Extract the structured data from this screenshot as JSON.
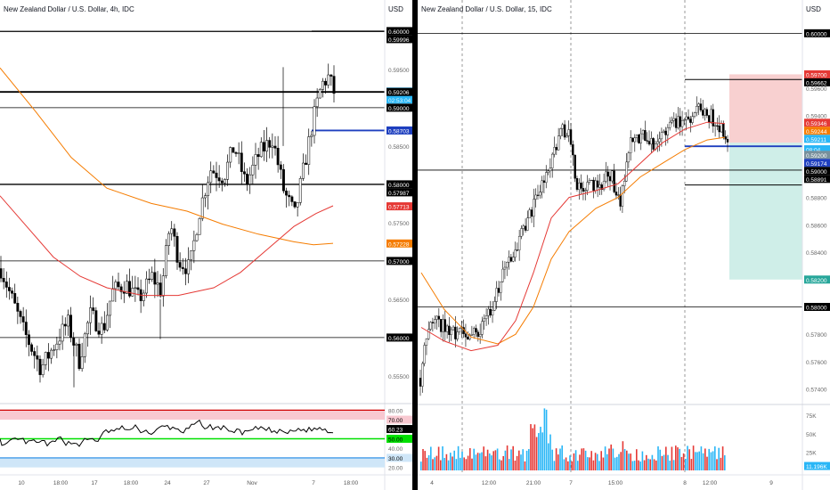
{
  "left_chart": {
    "title": "New Zealand Dollar / U.S. Dollar, 4h, IDC",
    "currency": "USD",
    "price_labels": [
      {
        "text": "0.60000",
        "kind": "line",
        "y": 0.6
      },
      {
        "text": "0.59996",
        "kind": "line",
        "y": 0.59996
      },
      {
        "text": "0.59500",
        "kind": "axis",
        "y": 0.595
      },
      {
        "text": "0.59211",
        "kind": "last",
        "y": 0.59211
      },
      {
        "text": "02:53:04",
        "kind": "countdown",
        "y": 0.5915
      },
      {
        "text": "0.59206",
        "kind": "line",
        "y": 0.59206
      },
      {
        "text": "0.59000",
        "kind": "line",
        "y": 0.59
      },
      {
        "text": "0.58703",
        "kind": "blueline",
        "y": 0.58703
      },
      {
        "text": "0.58500",
        "kind": "axis",
        "y": 0.585
      },
      {
        "text": "0.58000",
        "kind": "line",
        "y": 0.58
      },
      {
        "text": "0.57987",
        "kind": "line",
        "y": 0.57987
      },
      {
        "text": "0.57713",
        "kind": "ma_red",
        "y": 0.57713
      },
      {
        "text": "0.57500",
        "kind": "axis",
        "y": 0.575
      },
      {
        "text": "0.57228",
        "kind": "ma_orange",
        "y": 0.57228
      },
      {
        "text": "0.57000",
        "kind": "line",
        "y": 0.57
      },
      {
        "text": "0.56500",
        "kind": "axis",
        "y": 0.565
      },
      {
        "text": "0.56000",
        "kind": "line",
        "y": 0.56
      },
      {
        "text": "0.55500",
        "kind": "axis",
        "y": 0.555
      }
    ],
    "rsi_labels": [
      {
        "text": "80.00",
        "kind": "axis",
        "v": 80
      },
      {
        "text": "70.00",
        "kind": "ob",
        "v": 70
      },
      {
        "text": "60.23",
        "kind": "current",
        "v": 60.23
      },
      {
        "text": "50.00",
        "kind": "mid",
        "v": 50
      },
      {
        "text": "40.00",
        "kind": "axis",
        "v": 40
      },
      {
        "text": "30.00",
        "kind": "os",
        "v": 30
      },
      {
        "text": "20.00",
        "kind": "axis",
        "v": 20
      }
    ],
    "x_labels": [
      "10",
      "18:00",
      "17",
      "18:00",
      "24",
      "27",
      "Nov",
      "7",
      "18:00"
    ]
  },
  "right_chart": {
    "title": "New Zealand Dollar / U.S. Dollar, 15, IDC",
    "currency": "USD",
    "price_labels": [
      {
        "text": "0.60000",
        "kind": "line",
        "y": 0.6
      },
      {
        "text": "0.59700",
        "kind": "stop",
        "y": 0.597
      },
      {
        "text": "0.59662",
        "kind": "line",
        "y": 0.59662
      },
      {
        "text": "0.59600",
        "kind": "axis",
        "y": 0.596
      },
      {
        "text": "0.59400",
        "kind": "axis",
        "y": 0.594
      },
      {
        "text": "0.59346",
        "kind": "ma_red",
        "y": 0.59346
      },
      {
        "text": "0.59244",
        "kind": "ma_orange",
        "y": 0.59244
      },
      {
        "text": "0.59211",
        "kind": "last",
        "y": 0.59211
      },
      {
        "text": "08:04",
        "kind": "countdown",
        "y": 0.5915
      },
      {
        "text": "0.59200",
        "kind": "entry",
        "y": 0.592
      },
      {
        "text": "0.59174",
        "kind": "blueline",
        "y": 0.59174
      },
      {
        "text": "0.59000",
        "kind": "line",
        "y": 0.59
      },
      {
        "text": "0.58891",
        "kind": "line",
        "y": 0.58891
      },
      {
        "text": "0.58800",
        "kind": "axis",
        "y": 0.588
      },
      {
        "text": "0.58600",
        "kind": "axis",
        "y": 0.586
      },
      {
        "text": "0.58400",
        "kind": "axis",
        "y": 0.584
      },
      {
        "text": "0.58200",
        "kind": "target",
        "y": 0.582
      },
      {
        "text": "0.58000",
        "kind": "line",
        "y": 0.58
      },
      {
        "text": "0.57800",
        "kind": "axis",
        "y": 0.578
      },
      {
        "text": "0.57600",
        "kind": "axis",
        "y": 0.576
      },
      {
        "text": "0.57400",
        "kind": "axis",
        "y": 0.574
      }
    ],
    "volume_labels": [
      {
        "text": "75K",
        "kind": "axis",
        "v": 75
      },
      {
        "text": "50K",
        "kind": "axis",
        "v": 50
      },
      {
        "text": "25K",
        "kind": "axis",
        "v": 25
      },
      {
        "text": "11.196K",
        "kind": "current",
        "v": 11.196
      }
    ],
    "x_labels": [
      "4",
      "12:00",
      "21:00",
      "7",
      "15:00",
      "8",
      "12:00",
      "9"
    ]
  },
  "colors": {
    "up": "#26a69a",
    "down": "#000000",
    "ma_red": "#e53935",
    "ma_orange": "#f57c00",
    "blue_line": "#1e3fbf",
    "stop_zone": "#f8d0d0",
    "target_zone": "#cfeee8",
    "rsi_line": "#000000",
    "rsi_ob_band": "#f8c8d0",
    "rsi_os_band": "#cfe6f8",
    "rsi_mid": "#00e000",
    "vol_up": "#29b6f6",
    "vol_down": "#e53935"
  }
}
